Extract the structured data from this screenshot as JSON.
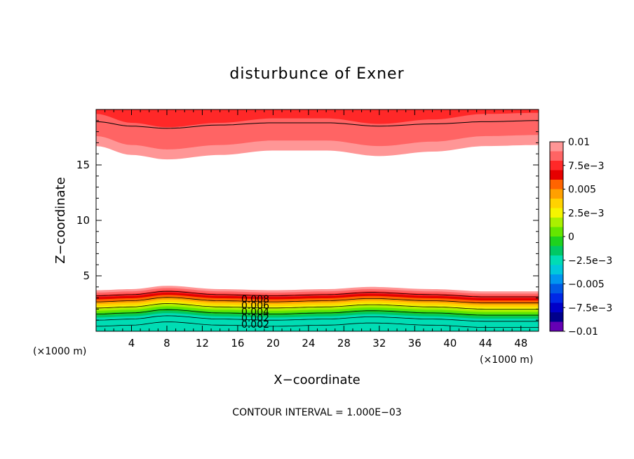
{
  "chart_data": {
    "type": "contour",
    "title": "disturbunce of Exner",
    "xlabel": "X−coordinate",
    "ylabel": "Z−coordinate",
    "x_unit_left": "(×1000 m)",
    "x_unit_right": "(×1000 m)",
    "xlim": [
      0,
      50
    ],
    "ylim": [
      0,
      20
    ],
    "x_ticks": [
      4,
      8,
      12,
      16,
      20,
      24,
      28,
      32,
      36,
      40,
      44,
      48
    ],
    "y_ticks": [
      5,
      10,
      15
    ],
    "contour_labels": [
      "0.008",
      "0.006",
      "0.004",
      "0.002",
      "0.002"
    ],
    "footer": "CONTOUR INTERVAL = 1.000E−03",
    "colorbar": {
      "labels": [
        "0.01",
        "7.5e−3",
        "0.005",
        "2.5e−3",
        "0",
        "−2.5e−3",
        "−0.005",
        "−7.5e−3",
        "−0.01"
      ],
      "levels": [
        0.01,
        0.0075,
        0.005,
        0.0025,
        0,
        -0.0025,
        -0.005,
        -0.0075,
        -0.01
      ],
      "colors": [
        "#ff9696",
        "#ff6464",
        "#ff2828",
        "#e60000",
        "#ff6400",
        "#ffa000",
        "#ffd200",
        "#f5f500",
        "#aaf000",
        "#64e600",
        "#1ed21e",
        "#00c864",
        "#00dcb4",
        "#00c8dc",
        "#0096f0",
        "#005ae6",
        "#0028e6",
        "#0000c8",
        "#00008c",
        "#6400b4"
      ]
    },
    "top_layer_boundary": [
      [
        0,
        16.7
      ],
      [
        4,
        15.9
      ],
      [
        8,
        15.5
      ],
      [
        14,
        15.9
      ],
      [
        20,
        16.3
      ],
      [
        26,
        16.3
      ],
      [
        32,
        15.8
      ],
      [
        38,
        16.2
      ],
      [
        44,
        16.7
      ],
      [
        50,
        16.8
      ]
    ],
    "top_black_contour": [
      [
        0,
        18.9
      ],
      [
        4,
        18.5
      ],
      [
        8,
        18.3
      ],
      [
        14,
        18.6
      ],
      [
        20,
        18.8
      ],
      [
        26,
        18.8
      ],
      [
        32,
        18.5
      ],
      [
        38,
        18.7
      ],
      [
        44,
        18.9
      ],
      [
        50,
        19.0
      ]
    ],
    "bottom_layer_top": [
      [
        0,
        3.7
      ],
      [
        4,
        3.8
      ],
      [
        8,
        4.1
      ],
      [
        14,
        3.8
      ],
      [
        20,
        3.7
      ],
      [
        26,
        3.8
      ],
      [
        31,
        4.0
      ],
      [
        38,
        3.8
      ],
      [
        44,
        3.6
      ],
      [
        50,
        3.6
      ]
    ]
  }
}
